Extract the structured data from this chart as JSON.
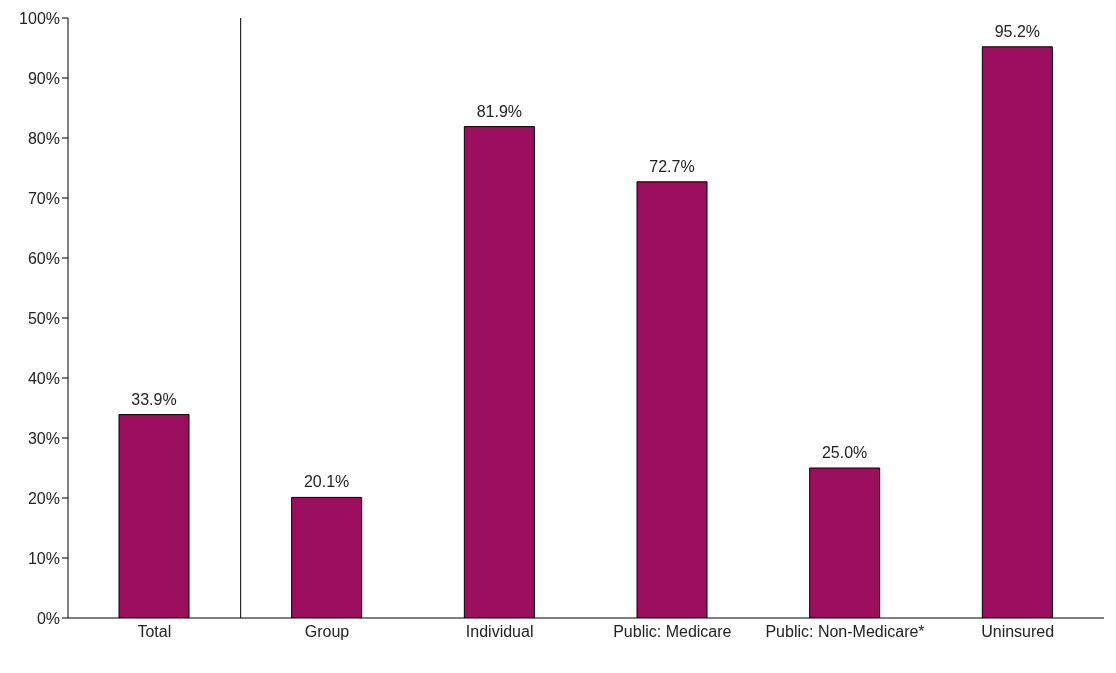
{
  "chart_data": {
    "type": "bar",
    "categories": [
      "Total",
      "Group",
      "Individual",
      "Public: Medicare",
      "Public: Non-Medicare*",
      "Uninsured"
    ],
    "values": [
      33.9,
      20.1,
      81.9,
      72.7,
      25.0,
      95.2
    ],
    "value_labels": [
      "33.9%",
      "20.1%",
      "81.9%",
      "72.7%",
      "25.0%",
      "95.2%"
    ],
    "color": "#9c0f5f",
    "ylim": [
      0,
      100
    ],
    "yticks": [
      {
        "value": 0,
        "label": "0%"
      },
      {
        "value": 10,
        "label": "10%"
      },
      {
        "value": 20,
        "label": "20%"
      },
      {
        "value": 30,
        "label": "30%"
      },
      {
        "value": 40,
        "label": "40%"
      },
      {
        "value": 50,
        "label": "50%"
      },
      {
        "value": 60,
        "label": "60%"
      },
      {
        "value": 70,
        "label": "70%"
      },
      {
        "value": 80,
        "label": "80%"
      },
      {
        "value": 90,
        "label": "90%"
      },
      {
        "value": 100,
        "label": "100%"
      }
    ],
    "grid": false,
    "legend": false
  }
}
